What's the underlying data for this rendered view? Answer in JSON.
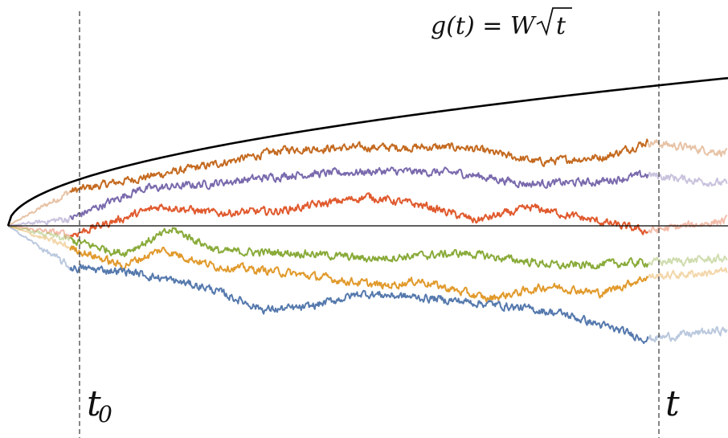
{
  "labels": {
    "formula_lhs": "g(t) = W",
    "formula_sqrt_arg": "t",
    "t0_main": "t",
    "t0_sub": "0",
    "t_label": "t"
  },
  "colors": {
    "curve": "#000000",
    "axis": "#000000",
    "marker": "#444444"
  },
  "paths": [
    {
      "color": "#c46a20",
      "points": [
        [
          0,
          0
        ],
        [
          1.1,
          0.19
        ],
        [
          2.1,
          0.25
        ],
        [
          3.5,
          0.33
        ],
        [
          4.9,
          0.42
        ],
        [
          6.3,
          0.43
        ],
        [
          8.0,
          0.43
        ],
        [
          9.3,
          0.35
        ],
        [
          10.5,
          0.38
        ],
        [
          11.2,
          0.46
        ],
        [
          12.6,
          0.4
        ]
      ]
    },
    {
      "color": "#7a6aad",
      "points": [
        [
          0,
          0
        ],
        [
          1.1,
          0.04
        ],
        [
          2.3,
          0.2
        ],
        [
          3.5,
          0.23
        ],
        [
          5.0,
          0.28
        ],
        [
          6.6,
          0.3
        ],
        [
          7.9,
          0.29
        ],
        [
          9.1,
          0.23
        ],
        [
          10.3,
          0.24
        ],
        [
          11.2,
          0.28
        ],
        [
          12.6,
          0.23
        ]
      ]
    },
    {
      "color": "#e05a2e",
      "points": [
        [
          0,
          0
        ],
        [
          1.1,
          -0.05
        ],
        [
          2.7,
          0.11
        ],
        [
          3.6,
          0.07
        ],
        [
          4.7,
          0.08
        ],
        [
          6.3,
          0.16
        ],
        [
          7.3,
          0.11
        ],
        [
          8.2,
          0.03
        ],
        [
          9.2,
          0.1
        ],
        [
          10.1,
          0.04
        ],
        [
          11.2,
          -0.03
        ],
        [
          12.6,
          0.03
        ]
      ]
    },
    {
      "color": "#89ab3a",
      "points": [
        [
          0,
          0
        ],
        [
          1.1,
          -0.08
        ],
        [
          2.0,
          -0.15
        ],
        [
          2.9,
          -0.02
        ],
        [
          3.7,
          -0.14
        ],
        [
          5.2,
          -0.15
        ],
        [
          6.3,
          -0.18
        ],
        [
          8.0,
          -0.15
        ],
        [
          9.7,
          -0.22
        ],
        [
          11.2,
          -0.2
        ],
        [
          12.6,
          -0.18
        ]
      ]
    },
    {
      "color": "#e19a2c",
      "points": [
        [
          0,
          0
        ],
        [
          1.1,
          -0.12
        ],
        [
          2.0,
          -0.22
        ],
        [
          2.7,
          -0.13
        ],
        [
          3.6,
          -0.22
        ],
        [
          4.7,
          -0.25
        ],
        [
          6.6,
          -0.33
        ],
        [
          7.2,
          -0.3
        ],
        [
          8.4,
          -0.4
        ],
        [
          9.5,
          -0.33
        ],
        [
          10.4,
          -0.37
        ],
        [
          11.2,
          -0.28
        ],
        [
          12.6,
          -0.25
        ]
      ]
    },
    {
      "color": "#5579ad",
      "points": [
        [
          0,
          0
        ],
        [
          1.1,
          -0.23
        ],
        [
          2.1,
          -0.25
        ],
        [
          3.5,
          -0.34
        ],
        [
          4.5,
          -0.46
        ],
        [
          5.2,
          -0.45
        ],
        [
          6.2,
          -0.37
        ],
        [
          7.5,
          -0.4
        ],
        [
          8.5,
          -0.43
        ],
        [
          9.7,
          -0.48
        ],
        [
          11.2,
          -0.62
        ],
        [
          12.6,
          -0.57
        ]
      ]
    }
  ]
}
